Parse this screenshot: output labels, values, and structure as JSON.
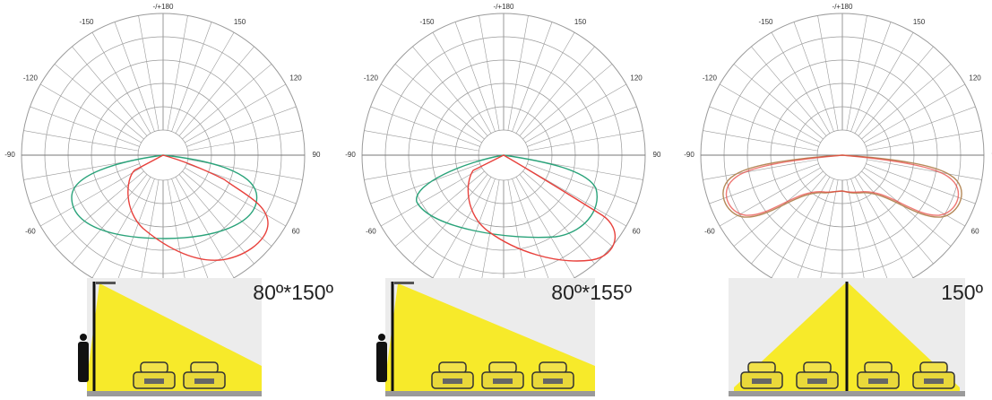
{
  "panels": [
    {
      "angle_labels": [
        "-/+180",
        "-150",
        "150",
        "-120",
        "120",
        "-90",
        "90",
        "-60",
        "60"
      ],
      "beam_label": "80º*150º"
    },
    {
      "angle_labels": [
        "-/+180",
        "-150",
        "150",
        "-120",
        "120",
        "-90",
        "90",
        "-60",
        "60"
      ],
      "beam_label": "80º*155º"
    },
    {
      "angle_labels": [
        "-/+180",
        "-150",
        "150",
        "-120",
        "120",
        "-90",
        "90",
        "-60",
        "60"
      ],
      "beam_label": "150º"
    }
  ]
}
